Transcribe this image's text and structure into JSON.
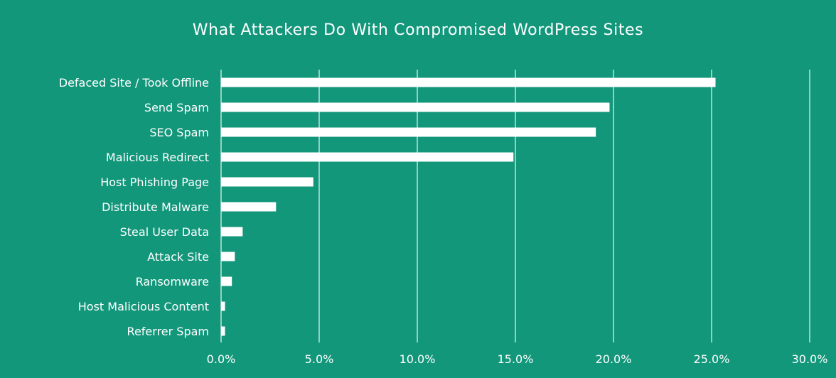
{
  "chart_data": {
    "type": "bar",
    "orientation": "horizontal",
    "title": "What Attackers Do With Compromised WordPress Sites",
    "categories": [
      "Defaced Site / Took Offline",
      "Send Spam",
      "SEO Spam",
      "Malicious Redirect",
      "Host Phishing Page",
      "Distribute Malware",
      "Steal User Data",
      "Attack Site",
      "Ransomware",
      "Host Malicious Content",
      "Referrer Spam"
    ],
    "values": [
      25.2,
      19.8,
      19.1,
      14.9,
      4.7,
      2.8,
      1.1,
      0.7,
      0.55,
      0.2,
      0.2
    ],
    "xlim": [
      0,
      30
    ],
    "xticks": [
      0,
      5,
      10,
      15,
      20,
      25,
      30
    ],
    "xtick_labels": [
      "0.0%",
      "5.0%",
      "10.0%",
      "15.0%",
      "20.0%",
      "25.0%",
      "30.0%"
    ],
    "xlabel": "",
    "ylabel": "",
    "grid": "vertical",
    "legend": "none",
    "colors": {
      "background": "#13977b",
      "bar": "#ffffff",
      "grid": "#d9efe9",
      "text": "#ffffff"
    }
  }
}
